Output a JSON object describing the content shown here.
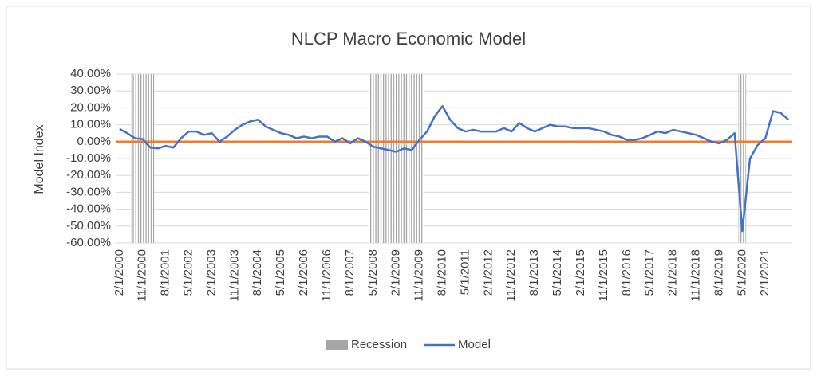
{
  "chart_data": {
    "type": "line",
    "title": "NLCP Macro Economic Model",
    "y_label": "Model Index",
    "categories": [
      "2/1/2000",
      null,
      null,
      "11/1/2000",
      null,
      null,
      "8/1/2001",
      null,
      null,
      "5/1/2002",
      null,
      null,
      "2/1/2003",
      null,
      null,
      "11/1/2003",
      null,
      null,
      "8/1/2004",
      null,
      null,
      "5/1/2005",
      null,
      null,
      "2/1/2006",
      null,
      null,
      "11/1/2006",
      null,
      null,
      "8/1/2007",
      null,
      null,
      "5/1/2008",
      null,
      null,
      "2/1/2009",
      null,
      null,
      "11/1/2009",
      null,
      null,
      "8/1/2010",
      null,
      null,
      "5/1/2011",
      null,
      null,
      "2/1/2012",
      null,
      null,
      "11/1/2012",
      null,
      null,
      "8/1/2013",
      null,
      null,
      "5/1/2014",
      null,
      null,
      "2/1/2015",
      null,
      null,
      "11/1/2015",
      null,
      null,
      "8/1/2016",
      null,
      null,
      "5/1/2017",
      null,
      null,
      "2/1/2018",
      null,
      null,
      "11/1/2018",
      null,
      null,
      "8/1/2019",
      null,
      null,
      "5/1/2020",
      null,
      null,
      "2/1/2021",
      null,
      null,
      null
    ],
    "series": [
      {
        "name": "Recession",
        "type": "bar",
        "axis": "y2",
        "color": "#a6a6a6",
        "values": [
          0,
          0,
          1,
          1,
          1,
          0,
          0,
          0,
          0,
          0,
          0,
          0,
          0,
          0,
          0,
          0,
          0,
          0,
          0,
          0,
          0,
          0,
          0,
          0,
          0,
          0,
          0,
          0,
          0,
          0,
          0,
          0,
          0,
          1,
          1,
          1,
          1,
          1,
          1,
          1,
          0,
          0,
          0,
          0,
          0,
          0,
          0,
          0,
          0,
          0,
          0,
          0,
          0,
          0,
          0,
          0,
          0,
          0,
          0,
          0,
          0,
          0,
          0,
          0,
          0,
          0,
          0,
          0,
          0,
          0,
          0,
          0,
          0,
          0,
          0,
          0,
          0,
          0,
          0,
          0,
          0,
          1,
          0,
          0,
          0,
          0,
          0,
          0
        ]
      },
      {
        "name": "Model",
        "type": "line",
        "color": "#4472c4",
        "values": [
          7.5,
          5,
          2,
          1.5,
          -3.5,
          -4,
          -2.5,
          -3.5,
          2,
          6,
          6,
          4,
          5,
          0,
          3,
          7,
          10,
          12,
          13,
          9,
          7,
          5,
          4,
          2,
          3,
          2,
          3,
          3,
          0,
          2,
          -1,
          2,
          0,
          -3,
          -4,
          -5,
          -6,
          -4,
          -5,
          1,
          6,
          15,
          21,
          13,
          8,
          6,
          7,
          6,
          6,
          6,
          8,
          6,
          11,
          8,
          6,
          8,
          10,
          9,
          9,
          8,
          8,
          8,
          7,
          6,
          4,
          3,
          1,
          1,
          2,
          4,
          6,
          5,
          7,
          6,
          5,
          4,
          2,
          0,
          -1,
          1,
          5,
          -53,
          -10,
          -2,
          2,
          18,
          17,
          13
        ]
      }
    ],
    "ylim": [
      -60,
      40
    ],
    "yticks": [
      {
        "value": -60,
        "label": "-60.00%"
      },
      {
        "value": -50,
        "label": "-50.00%"
      },
      {
        "value": -40,
        "label": "-40.00%"
      },
      {
        "value": -30,
        "label": "-30.00%"
      },
      {
        "value": -20,
        "label": "-20.00%"
      },
      {
        "value": -10,
        "label": "-10.00%"
      },
      {
        "value": 0,
        "label": "0.00%"
      },
      {
        "value": 10,
        "label": "10.00%"
      },
      {
        "value": 20,
        "label": "20.00%"
      },
      {
        "value": 30,
        "label": "30.00%"
      },
      {
        "value": 40,
        "label": "40.00%"
      }
    ],
    "y2lim": [
      0,
      1
    ],
    "grid": true,
    "zero_line_color": "#ed7d31",
    "legend": "bottom"
  }
}
